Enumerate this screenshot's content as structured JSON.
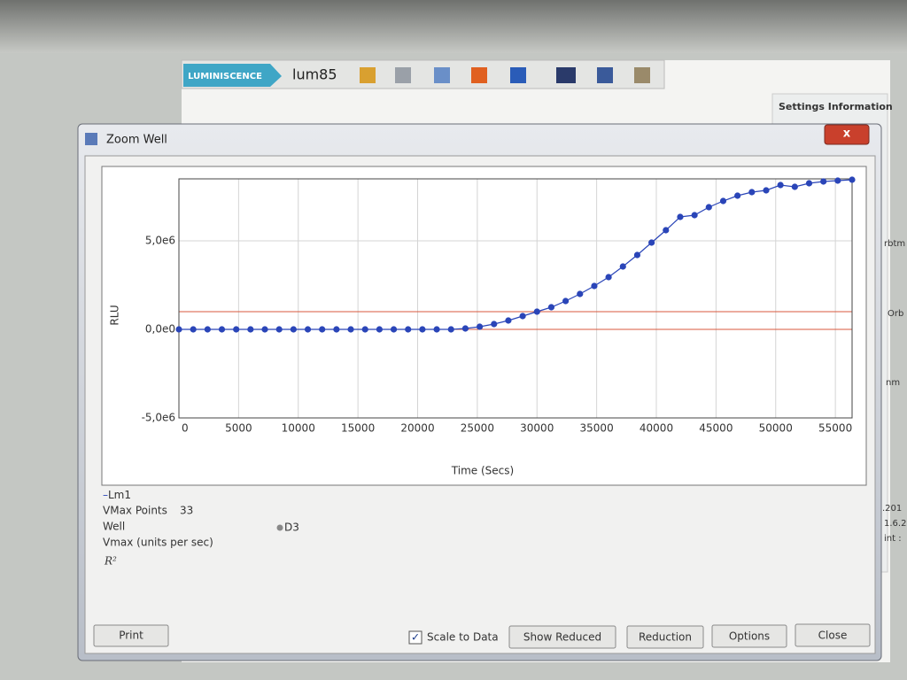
{
  "app": {
    "badge": "LUMINISCENCE",
    "file": "lum85",
    "side_panel_title": "Settings Information",
    "side_fragments": [
      "rbtm",
      "Orb",
      "nm",
      ".201",
      "1.6.2",
      "int :"
    ]
  },
  "dialog": {
    "title": "Zoom Well",
    "close_symbol": "x"
  },
  "chart_data": {
    "type": "line",
    "x_label": "Time (Secs)",
    "y_label": "RLU",
    "x": [
      0,
      1200,
      2400,
      3600,
      4800,
      6000,
      7200,
      8400,
      9600,
      10800,
      12000,
      13200,
      14400,
      15600,
      16800,
      18000,
      19200,
      20400,
      21600,
      22800,
      24000,
      25200,
      26400,
      27600,
      28800,
      30000,
      31200,
      32400,
      33600,
      34800,
      36000,
      37200,
      38400,
      39600,
      40800,
      42000,
      43200,
      44400,
      45600,
      46800,
      48000,
      49200,
      50400,
      51600,
      52800,
      54000,
      55200,
      56400
    ],
    "series": [
      {
        "name": "Lm1",
        "color": "#2a45b8",
        "values": [
          0,
          0,
          0,
          0,
          0,
          0,
          0,
          0,
          0,
          0,
          0,
          0,
          0,
          0,
          0,
          0,
          0,
          0,
          0,
          0,
          50000,
          150000,
          300000,
          500000,
          750000,
          1000000,
          1250000,
          1600000,
          2000000,
          2450000,
          2950000,
          3550000,
          4200000,
          4900000,
          5600000,
          6350000,
          6450000,
          6900000,
          7250000,
          7550000,
          7750000,
          7850000,
          8150000,
          8050000,
          8250000,
          8350000,
          8400000,
          8450000
        ]
      }
    ],
    "thresholds": {
      "values": [
        1000000,
        0
      ],
      "color": "#d9583c"
    },
    "xlim": [
      0,
      56400
    ],
    "xticks": [
      0,
      5000,
      10000,
      15000,
      20000,
      25000,
      30000,
      35000,
      40000,
      45000,
      50000,
      55000
    ],
    "ylim": [
      -5000000,
      8500000
    ],
    "yticks": [
      {
        "value": -5000000,
        "label": "-5,0e6"
      },
      {
        "value": 0,
        "label": "0,0e0"
      },
      {
        "value": 5000000,
        "label": "5,0e6"
      }
    ],
    "grid": true
  },
  "info": {
    "legend_prefix": "–",
    "vmax_points_label": "VMax Points",
    "vmax_points": "33",
    "well_label": "Well",
    "well": "D3",
    "vmax_label": "Vmax (units per sec)",
    "r2": "R²"
  },
  "buttons": {
    "print": "Print",
    "scale_to_data": "Scale to Data",
    "check": "✓",
    "show_reduced": "Show Reduced",
    "reduction": "Reduction",
    "options": "Options",
    "close": "Close"
  }
}
